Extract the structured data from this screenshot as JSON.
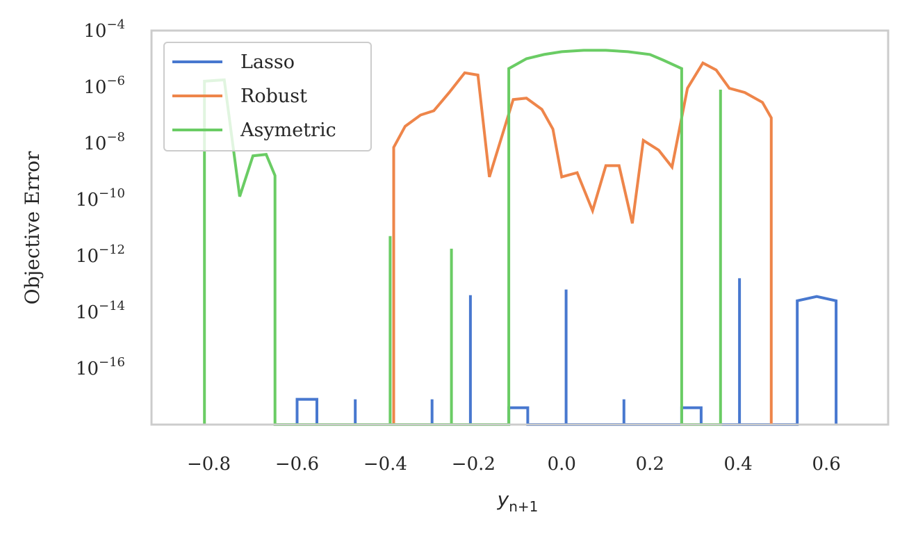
{
  "chart_data": {
    "type": "line",
    "title": "",
    "xlabel": "y",
    "xlabel_subscript": "n+1",
    "ylabel": "Objective Error",
    "yscale": "log",
    "xlim": [
      -0.93,
      0.74
    ],
    "ylim_exp": [
      -18.0,
      -4.0
    ],
    "x_ticks": [
      {
        "value": -0.8,
        "label": "−0.8"
      },
      {
        "value": -0.6,
        "label": "−0.6"
      },
      {
        "value": -0.4,
        "label": "−0.4"
      },
      {
        "value": -0.2,
        "label": "−0.2"
      },
      {
        "value": 0.0,
        "label": "0.0"
      },
      {
        "value": 0.2,
        "label": "0.2"
      },
      {
        "value": 0.4,
        "label": "0.4"
      },
      {
        "value": 0.6,
        "label": "0.6"
      }
    ],
    "y_ticks": [
      {
        "exp": -4,
        "base": "10",
        "sup": "−4"
      },
      {
        "exp": -6,
        "base": "10",
        "sup": "−6"
      },
      {
        "exp": -8,
        "base": "10",
        "sup": "−8"
      },
      {
        "exp": -10,
        "base": "10",
        "sup": "−10"
      },
      {
        "exp": -12,
        "base": "10",
        "sup": "−12"
      },
      {
        "exp": -14,
        "base": "10",
        "sup": "−14"
      },
      {
        "exp": -16,
        "base": "10",
        "sup": "−16"
      }
    ],
    "grid": false,
    "legend": "top-left",
    "series": [
      {
        "name": "Lasso",
        "color": "#4878cf",
        "points": [
          [
            -0.6,
            -18
          ],
          [
            -0.6,
            -17.1
          ],
          [
            -0.555,
            -17.1
          ],
          [
            -0.555,
            -18
          ],
          [
            -0.468,
            -18
          ],
          [
            -0.468,
            -17.1
          ],
          [
            -0.468,
            -18
          ],
          [
            -0.294,
            -18
          ],
          [
            -0.294,
            -17.1
          ],
          [
            -0.294,
            -18
          ],
          [
            -0.207,
            -18
          ],
          [
            -0.207,
            -13.4
          ],
          [
            -0.207,
            -18
          ],
          [
            -0.12,
            -18
          ],
          [
            -0.12,
            -17.4
          ],
          [
            -0.077,
            -17.4
          ],
          [
            -0.077,
            -18
          ],
          [
            0.01,
            -18
          ],
          [
            0.01,
            -13.2
          ],
          [
            0.01,
            -18
          ],
          [
            0.141,
            -18
          ],
          [
            0.141,
            -17.1
          ],
          [
            0.141,
            -18
          ],
          [
            0.272,
            -18
          ],
          [
            0.272,
            -17.4
          ],
          [
            0.316,
            -17.4
          ],
          [
            0.316,
            -18
          ],
          [
            0.403,
            -18
          ],
          [
            0.403,
            -12.8
          ],
          [
            0.403,
            -18
          ],
          [
            0.534,
            -18
          ],
          [
            0.534,
            -13.6
          ],
          [
            0.578,
            -13.45
          ],
          [
            0.622,
            -13.6
          ],
          [
            0.622,
            -18
          ]
        ]
      },
      {
        "name": "Robust",
        "color": "#ee854a",
        "points": [
          [
            -0.381,
            -18
          ],
          [
            -0.381,
            -8.15
          ],
          [
            -0.355,
            -7.4
          ],
          [
            -0.32,
            -7.0
          ],
          [
            -0.29,
            -6.85
          ],
          [
            -0.255,
            -6.2
          ],
          [
            -0.22,
            -5.5
          ],
          [
            -0.19,
            -5.58
          ],
          [
            -0.164,
            -9.2
          ],
          [
            -0.11,
            -6.45
          ],
          [
            -0.08,
            -6.4
          ],
          [
            -0.045,
            -6.8
          ],
          [
            -0.02,
            -7.5
          ],
          [
            0.0,
            -9.2
          ],
          [
            0.035,
            -9.05
          ],
          [
            0.07,
            -10.4
          ],
          [
            0.1,
            -8.8
          ],
          [
            0.13,
            -8.8
          ],
          [
            0.16,
            -10.85
          ],
          [
            0.185,
            -7.9
          ],
          [
            0.22,
            -8.25
          ],
          [
            0.25,
            -8.85
          ],
          [
            0.285,
            -6.05
          ],
          [
            0.32,
            -5.15
          ],
          [
            0.35,
            -5.4
          ],
          [
            0.38,
            -6.05
          ],
          [
            0.415,
            -6.2
          ],
          [
            0.455,
            -6.55
          ],
          [
            0.475,
            -7.1
          ],
          [
            0.475,
            -18
          ]
        ]
      },
      {
        "name": "Asymetric",
        "color": "#6acc64",
        "points": [
          [
            -0.81,
            -18
          ],
          [
            -0.81,
            -5.8
          ],
          [
            -0.765,
            -5.75
          ],
          [
            -0.73,
            -9.9
          ],
          [
            -0.7,
            -8.45
          ],
          [
            -0.67,
            -8.4
          ],
          [
            -0.65,
            -9.15
          ],
          [
            -0.65,
            -18
          ],
          [
            -0.65,
            -18
          ],
          [
            -0.389,
            -18
          ],
          [
            -0.389,
            -11.3
          ],
          [
            -0.389,
            -18
          ],
          [
            -0.25,
            -18
          ],
          [
            -0.25,
            -11.75
          ],
          [
            -0.25,
            -18
          ],
          [
            -0.12,
            -18
          ],
          [
            -0.12,
            -5.35
          ],
          [
            -0.08,
            -5.0
          ],
          [
            -0.04,
            -4.85
          ],
          [
            0.0,
            -4.75
          ],
          [
            0.05,
            -4.7
          ],
          [
            0.1,
            -4.7
          ],
          [
            0.15,
            -4.75
          ],
          [
            0.2,
            -4.85
          ],
          [
            0.23,
            -5.05
          ],
          [
            0.272,
            -5.35
          ],
          [
            0.272,
            -18
          ],
          [
            0.272,
            -18
          ],
          [
            0.36,
            -18
          ],
          [
            0.36,
            -6.1
          ],
          [
            0.36,
            -18
          ]
        ]
      }
    ]
  }
}
